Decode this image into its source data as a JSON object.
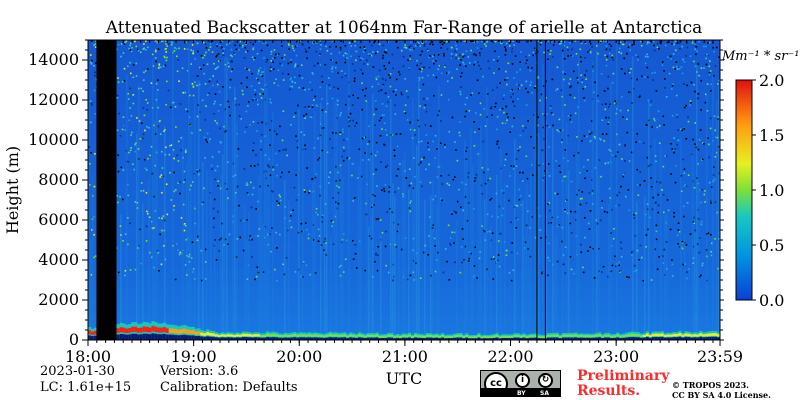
{
  "chart_data": {
    "type": "heatmap",
    "title": "Attenuated Backscatter at 1064nm Far-Range of arielle at Antarctica",
    "xlabel": "UTC",
    "ylabel": "Height (m)",
    "x_ticks": [
      "18:00",
      "19:00",
      "20:00",
      "21:00",
      "22:00",
      "23:00",
      "23:59"
    ],
    "x_range_hours": [
      18.0,
      23.983
    ],
    "y_ticks": [
      0,
      2000,
      4000,
      6000,
      8000,
      10000,
      12000,
      14000
    ],
    "ylim": [
      0,
      15000
    ],
    "colorbar": {
      "unit_label": "Mm⁻¹ * sr⁻¹",
      "ticks": [
        "0.0",
        "0.5",
        "1.0",
        "1.5",
        "2.0"
      ],
      "range": [
        0.0,
        2.0
      ],
      "colormap": "jet"
    },
    "missing_data_hours": [
      [
        18.08,
        18.27
      ]
    ],
    "vertical_marker_hours": [
      22.25,
      22.33
    ],
    "surface_layer": [
      {
        "hour": 18.0,
        "top_m": 600,
        "max_value": 2.0
      },
      {
        "hour": 18.3,
        "top_m": 800,
        "max_value": 2.0
      },
      {
        "hour": 18.6,
        "top_m": 900,
        "max_value": 2.0
      },
      {
        "hour": 18.9,
        "top_m": 700,
        "max_value": 1.6
      },
      {
        "hour": 19.2,
        "top_m": 400,
        "max_value": 1.2
      },
      {
        "hour": 20.0,
        "top_m": 350,
        "max_value": 1.0
      },
      {
        "hour": 20.5,
        "top_m": 350,
        "max_value": 1.0
      },
      {
        "hour": 21.0,
        "top_m": 300,
        "max_value": 1.0
      },
      {
        "hour": 22.0,
        "top_m": 300,
        "max_value": 0.9
      },
      {
        "hour": 23.0,
        "top_m": 350,
        "max_value": 1.0
      },
      {
        "hour": 23.983,
        "top_m": 450,
        "max_value": 1.4
      }
    ]
  },
  "footer": {
    "date": "2023-01-30",
    "lc": "LC: 1.61e+15",
    "version": "Version: 3.6",
    "calibration": "Calibration: Defaults",
    "preliminary_line1": "Preliminary",
    "preliminary_line2": "Results.",
    "copyright_line1": "© TROPOS 2023.",
    "copyright_line2": "CC BY SA 4.0 License.",
    "cc_by_label": "BY",
    "cc_sa_label": "SA"
  },
  "colors": {
    "background_field": "#1560d8",
    "no_data": "#000000",
    "axis": "#000000",
    "preliminary_text": "#ff2a2a"
  }
}
